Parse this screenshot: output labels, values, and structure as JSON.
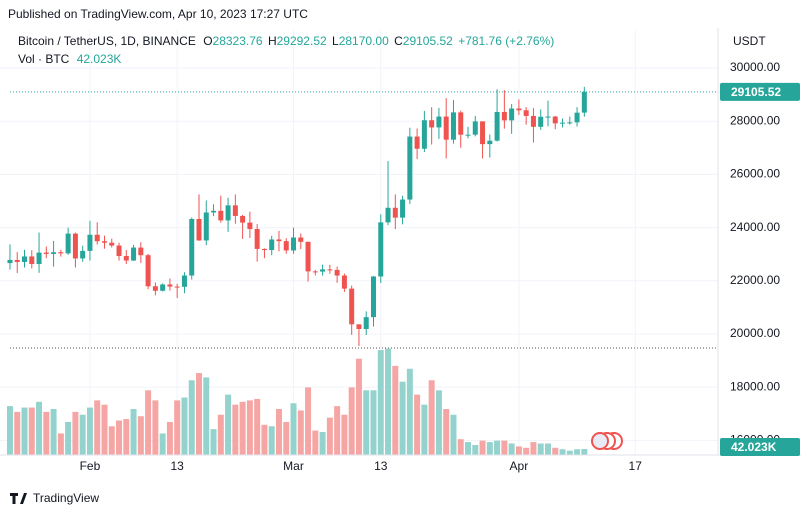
{
  "published": "Published on TradingView.com, Apr 10, 2023 17:27 UTC",
  "footer": "TradingView",
  "chart_data": {
    "type": "candlestick",
    "symbol": "Bitcoin / TetherUS, 1D, BINANCE",
    "currency": "USDT",
    "volume_name": "Vol · BTC",
    "ohlc_keys": [
      "O",
      "H",
      "L",
      "C"
    ],
    "last": {
      "open": 28323.76,
      "high": 29292.52,
      "low": {
        "value": 28170,
        "label": "28170.00"
      },
      "close": 29105.52,
      "change": {
        "value": 781.76,
        "label": "+781.76"
      },
      "change_pct": {
        "value": 2.76,
        "label": "(+2.76%)"
      },
      "volume": {
        "value": 42023,
        "label": "42.023K"
      }
    },
    "x": [
      "2023-01-21",
      "2023-01-22",
      "2023-01-23",
      "2023-01-24",
      "2023-01-25",
      "2023-01-26",
      "2023-01-27",
      "2023-01-28",
      "2023-01-29",
      "2023-01-30",
      "2023-01-31",
      "2023-02-01",
      "2023-02-02",
      "2023-02-03",
      "2023-02-04",
      "2023-02-05",
      "2023-02-06",
      "2023-02-07",
      "2023-02-08",
      "2023-02-09",
      "2023-02-10",
      "2023-02-11",
      "2023-02-12",
      "2023-02-13",
      "2023-02-14",
      "2023-02-15",
      "2023-02-16",
      "2023-02-17",
      "2023-02-18",
      "2023-02-19",
      "2023-02-20",
      "2023-02-21",
      "2023-02-22",
      "2023-02-23",
      "2023-02-24",
      "2023-02-25",
      "2023-02-26",
      "2023-02-27",
      "2023-02-28",
      "2023-03-01",
      "2023-03-02",
      "2023-03-03",
      "2023-03-04",
      "2023-03-05",
      "2023-03-06",
      "2023-03-07",
      "2023-03-08",
      "2023-03-09",
      "2023-03-10",
      "2023-03-11",
      "2023-03-12",
      "2023-03-13",
      "2023-03-14",
      "2023-03-15",
      "2023-03-16",
      "2023-03-17",
      "2023-03-18",
      "2023-03-19",
      "2023-03-20",
      "2023-03-21",
      "2023-03-22",
      "2023-03-23",
      "2023-03-24",
      "2023-03-25",
      "2023-03-26",
      "2023-03-27",
      "2023-03-28",
      "2023-03-29",
      "2023-03-30",
      "2023-03-31",
      "2023-04-01",
      "2023-04-02",
      "2023-04-03",
      "2023-04-04",
      "2023-04-05",
      "2023-04-06",
      "2023-04-07",
      "2023-04-08",
      "2023-04-09",
      "2023-04-10"
    ],
    "open": [
      22666,
      22783,
      22707,
      22916,
      22632,
      23060,
      23009,
      23074,
      23031,
      23774,
      22840,
      23125,
      23732,
      23488,
      23431,
      23326,
      22932,
      22762,
      23249,
      22963,
      21796,
      21625,
      21862,
      21783,
      21773,
      22199,
      24324,
      23517,
      24569,
      24631,
      24271,
      24837,
      24439,
      24188,
      23947,
      23198,
      23157,
      23554,
      23492,
      23141,
      23628,
      23465,
      22354,
      22346,
      22430,
      22409,
      22197,
      21705,
      20363,
      20187,
      20633,
      22163,
      24197,
      24746,
      24375,
      25055,
      27423,
      26965,
      28038,
      27767,
      28175,
      27307,
      28333,
      27493,
      27494,
      27994,
      27139,
      27268,
      28348,
      28033,
      28478,
      28411,
      28199,
      27790,
      28168,
      28175,
      27920,
      27947,
      27958,
      28323.76
    ],
    "high": [
      23370,
      23078,
      23165,
      23150,
      23816,
      23290,
      23500,
      23165,
      24000,
      23812,
      23320,
      24255,
      24200,
      23700,
      23585,
      23433,
      23159,
      23350,
      23452,
      23011,
      21938,
      21906,
      22090,
      21890,
      22322,
      24380,
      25250,
      25021,
      24877,
      25200,
      25121,
      25250,
      24476,
      24600,
      24133,
      23220,
      23689,
      23880,
      23600,
      24000,
      23780,
      23476,
      22410,
      22610,
      22600,
      22535,
      22270,
      21819,
      20368,
      20850,
      22177,
      24500,
      26500,
      25250,
      25198,
      27756,
      27725,
      28390,
      28528,
      28500,
      28868,
      28800,
      28400,
      27792,
      28200,
      27994,
      27500,
      29200,
      29167,
      28650,
      28819,
      28530,
      28494,
      28444,
      28775,
      28200,
      28100,
      28175,
      28530,
      29292.52
    ],
    "low": [
      22422,
      22292,
      22500,
      22468,
      22300,
      22850,
      22534,
      22909,
      22979,
      22500,
      22714,
      22760,
      23363,
      23206,
      23253,
      22760,
      22629,
      22745,
      22665,
      21688,
      21451,
      21599,
      21630,
      21351,
      21532,
      22047,
      23505,
      23339,
      24430,
      24188,
      23840,
      24148,
      23574,
      23608,
      22722,
      22850,
      22961,
      23106,
      23020,
      23020,
      23195,
      21971,
      22200,
      22198,
      22266,
      21927,
      21580,
      19967,
      19549,
      19962,
      20280,
      21918,
      24090,
      23946,
      24123,
      24890,
      26578,
      26843,
      27124,
      27335,
      26601,
      27156,
      27000,
      27360,
      27430,
      26600,
      26631,
      27240,
      27720,
      27525,
      28240,
      27871,
      27200,
      27676,
      27805,
      27700,
      27767,
      27870,
      27800,
      28170
    ],
    "close": [
      22783,
      22707,
      22916,
      22632,
      23060,
      23009,
      23074,
      23031,
      23774,
      22840,
      23125,
      23732,
      23488,
      23431,
      23326,
      22932,
      22762,
      23249,
      22963,
      21796,
      21625,
      21862,
      21783,
      21773,
      22199,
      24324,
      23517,
      24569,
      24631,
      24271,
      24837,
      24439,
      24188,
      23947,
      23198,
      23157,
      23554,
      23492,
      23141,
      23628,
      23465,
      22354,
      22346,
      22430,
      22409,
      22197,
      21705,
      20363,
      20187,
      20633,
      22163,
      24197,
      24746,
      24375,
      25055,
      27423,
      26965,
      28038,
      27767,
      28175,
      27307,
      28333,
      27493,
      27494,
      27994,
      27139,
      27268,
      28348,
      28033,
      28478,
      28411,
      28199,
      27790,
      28168,
      28175,
      27920,
      27947,
      27958,
      28323,
      29105.52
    ],
    "volume": [
      340000,
      300000,
      330000,
      330000,
      370000,
      300000,
      320000,
      150000,
      230000,
      300000,
      280000,
      330000,
      380000,
      350000,
      200000,
      240000,
      250000,
      320000,
      270000,
      450000,
      380000,
      150000,
      230000,
      380000,
      400000,
      520000,
      570000,
      540000,
      180000,
      280000,
      420000,
      350000,
      370000,
      380000,
      390000,
      210000,
      200000,
      320000,
      230000,
      360000,
      310000,
      470000,
      170000,
      160000,
      260000,
      340000,
      280000,
      470000,
      670000,
      450000,
      450000,
      730000,
      740000,
      620000,
      510000,
      600000,
      420000,
      350000,
      520000,
      450000,
      320000,
      280000,
      110000,
      90000,
      70000,
      100000,
      90000,
      100000,
      100000,
      80000,
      60000,
      50000,
      90000,
      80000,
      80000,
      50000,
      40000,
      30000,
      40000,
      42023
    ],
    "up_color": "#26a69a",
    "down_color": "#ef5350",
    "volume_up_color": "#94d3cd",
    "volume_down_color": "#f5a6a4",
    "xlim": [
      "2023-01-20",
      "2023-04-28"
    ],
    "xticks": [
      {
        "value": "2023-02-01",
        "label": "Feb"
      },
      {
        "value": "2023-02-13",
        "label": "13"
      },
      {
        "value": "2023-03-01",
        "label": "Mar"
      },
      {
        "value": "2023-03-13",
        "label": "13"
      },
      {
        "value": "2023-04-01",
        "label": "Apr"
      },
      {
        "value": "2023-04-17",
        "label": "17"
      }
    ],
    "ylim": [
      15450,
      31430
    ],
    "yticks": [
      {
        "value": 16000,
        "label": "16000.00"
      },
      {
        "value": 18000,
        "label": "18000.00"
      },
      {
        "value": 20000,
        "label": "20000.00"
      },
      {
        "value": 22000,
        "label": "22000.00"
      },
      {
        "value": 24000,
        "label": "24000.00"
      },
      {
        "value": 26000,
        "label": "26000.00"
      },
      {
        "value": 28000,
        "label": "28000.00"
      },
      {
        "value": 30000,
        "label": "30000.00"
      }
    ],
    "vlim": [
      0,
      800000
    ],
    "grid": true
  }
}
